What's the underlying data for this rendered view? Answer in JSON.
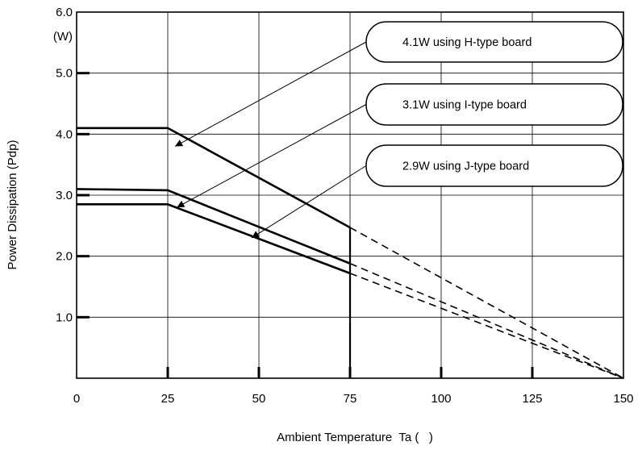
{
  "chart_data": {
    "type": "line",
    "title": "",
    "xlabel": "Ambient Temperature  Ta (   )",
    "ylabel": "Power Dissipation (Pdp)",
    "yunit": "(W)",
    "xlim": [
      0,
      150
    ],
    "ylim": [
      0,
      6.0
    ],
    "grid": true,
    "xticks": [
      0,
      25,
      50,
      75,
      100,
      125,
      150
    ],
    "xtick_labels": [
      "0",
      "25",
      "50",
      "75",
      "100",
      "125",
      "150"
    ],
    "yticks": [
      1.0,
      2.0,
      3.0,
      4.0,
      5.0,
      6.0
    ],
    "ytick_labels": [
      "1.0",
      "2.0",
      "3.0",
      "4.0",
      "5.0",
      "6.0"
    ],
    "series": [
      {
        "name": "4.1W using H-type  board",
        "x": [
          0,
          25,
          75
        ],
        "y": [
          4.1,
          4.1,
          2.47
        ],
        "extrapolation": {
          "x": [
            75,
            150
          ],
          "y": [
            2.47,
            0
          ]
        }
      },
      {
        "name": "3.1W using I-type  board",
        "x": [
          0,
          25,
          75
        ],
        "y": [
          3.1,
          3.08,
          1.88
        ],
        "extrapolation": {
          "x": [
            75,
            150
          ],
          "y": [
            1.88,
            0
          ]
        }
      },
      {
        "name": "2.9W using J-type  board",
        "x": [
          0,
          25,
          75
        ],
        "y": [
          2.85,
          2.85,
          1.72
        ],
        "extrapolation": {
          "x": [
            75,
            150
          ],
          "y": [
            1.72,
            0
          ]
        }
      }
    ],
    "annotations": [
      {
        "text": "4.1W using H-type  board",
        "series": 0,
        "arrow_to": {
          "x": 27,
          "y": 3.8
        }
      },
      {
        "text": "3.1W using I-type  board",
        "series": 1,
        "arrow_to": {
          "x": 27.5,
          "y": 2.8
        }
      },
      {
        "text": "2.9W using J-type  board",
        "series": 2,
        "arrow_to": {
          "x": 48,
          "y": 2.3
        }
      }
    ],
    "vline": {
      "x": 75,
      "y": [
        0,
        2.47
      ]
    }
  }
}
